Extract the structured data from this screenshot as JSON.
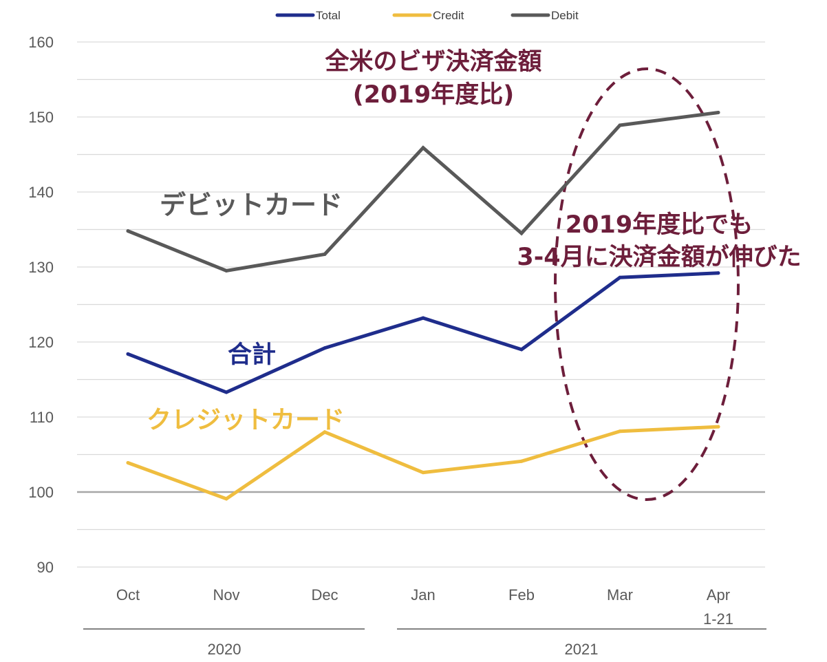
{
  "chart_data": {
    "type": "line",
    "title": "全米のビザ決済金額",
    "subtitle": "(2019年度比)",
    "categories": [
      "Oct",
      "Nov",
      "Dec",
      "Jan",
      "Feb",
      "Mar",
      "Apr"
    ],
    "category_sublabels": [
      "",
      "",
      "",
      "",
      "",
      "",
      "1-21"
    ],
    "year_groups": [
      {
        "label": "2020",
        "categories": [
          "Oct",
          "Nov",
          "Dec"
        ]
      },
      {
        "label": "2021",
        "categories": [
          "Jan",
          "Feb",
          "Mar",
          "Apr"
        ]
      }
    ],
    "series": [
      {
        "name": "Total",
        "color": "#1f2d8c",
        "values": [
          118.4,
          113.3,
          119.2,
          123.2,
          119.0,
          128.6,
          129.2
        ]
      },
      {
        "name": "Credit",
        "color": "#efbd3f",
        "values": [
          103.9,
          99.1,
          108.0,
          102.6,
          104.1,
          108.1,
          108.7
        ]
      },
      {
        "name": "Debit",
        "color": "#595959",
        "values": [
          134.8,
          129.5,
          131.7,
          145.9,
          134.5,
          148.9,
          150.6
        ]
      }
    ],
    "ylim": [
      90,
      160
    ],
    "yticks": [
      90,
      100,
      110,
      120,
      130,
      140,
      150,
      160
    ],
    "xlabel": "",
    "ylabel": "",
    "grid": true,
    "baseline": 100,
    "legend_position": "top-center",
    "annotations": [
      {
        "text": "デビットカード",
        "series": "Debit",
        "color": "#595959"
      },
      {
        "text": "合計",
        "series": "Total",
        "color": "#1f2d8c"
      },
      {
        "text": "クレジットカード",
        "series": "Credit",
        "color": "#efbd3f"
      },
      {
        "text": "2019年度比でも",
        "color": "#6d1e3b"
      },
      {
        "text": "3-4月に決済金額が伸びた",
        "color": "#6d1e3b"
      }
    ],
    "highlight": {
      "categories": [
        "Mar",
        "Apr"
      ],
      "shape": "dashed-ellipse",
      "color": "#6d1e3b"
    }
  }
}
